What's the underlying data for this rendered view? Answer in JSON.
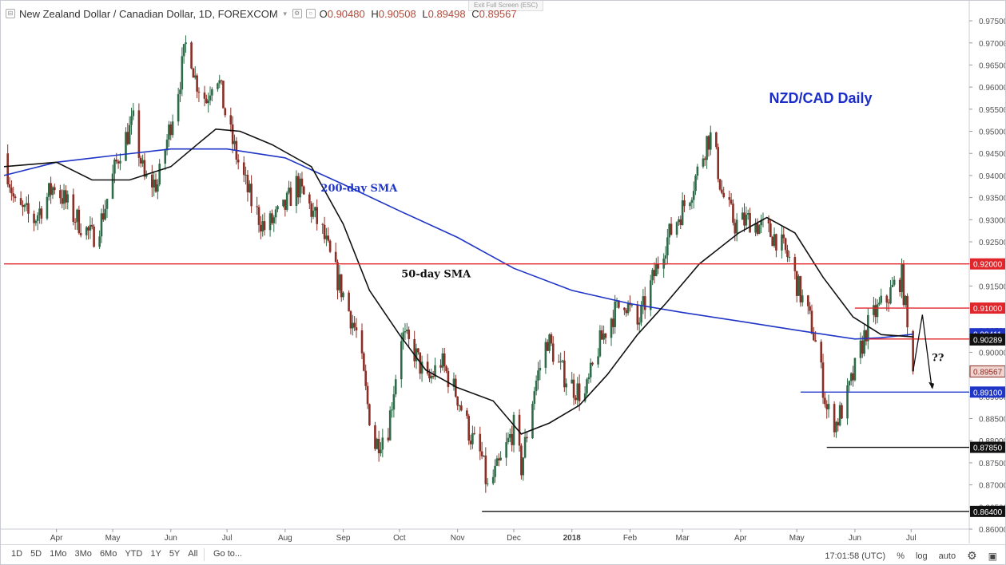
{
  "header": {
    "symbol": "New Zealand Dollar / Canadian Dollar, 1D, FOREXCOM",
    "open_label": "O",
    "open": "0.90480",
    "high_label": "H",
    "high": "0.90508",
    "low_label": "L",
    "low": "0.89498",
    "close_label": "C",
    "close": "0.89567",
    "exit_fullscreen": "Exit Full Screen (ESC)"
  },
  "toolbar": {
    "timeframes": [
      "1D",
      "5D",
      "1Mo",
      "3Mo",
      "6Mo",
      "YTD",
      "1Y",
      "5Y",
      "All"
    ],
    "goto": "Go to...",
    "clock": "17:01:58 (UTC)",
    "percent": "%",
    "log": "log",
    "auto": "auto"
  },
  "colors": {
    "up_candle": "#2e6b48",
    "down_candle": "#8b2e25",
    "sma50": "#111111",
    "sma200": "#1f35c7",
    "resistance": "#e0262a",
    "support_blue": "#1f35c7",
    "support_black": "#111111",
    "title": "#1b2dc9"
  },
  "chart_data": {
    "type": "candlestick",
    "title": "NZD/CAD Daily",
    "y_range": [
      0.86,
      0.977
    ],
    "y_ticks": [
      "0.97500",
      "0.97000",
      "0.96500",
      "0.96000",
      "0.95500",
      "0.95000",
      "0.94500",
      "0.94000",
      "0.93500",
      "0.93000",
      "0.92500",
      "0.92000",
      "0.91500",
      "0.91000",
      "0.90500",
      "0.90000",
      "0.89500",
      "0.89000",
      "0.88500",
      "0.88000",
      "0.87500",
      "0.87000",
      "0.86500",
      "0.86000"
    ],
    "x_labels": [
      "Apr",
      "May",
      "Jun",
      "Jul",
      "Aug",
      "Sep",
      "Oct",
      "Nov",
      "Dec",
      "2018",
      "Feb",
      "Mar",
      "Apr",
      "May",
      "Jun",
      "Jul"
    ],
    "x_label_dates": [
      "2017-04-01",
      "2017-05-01",
      "2017-06-01",
      "2017-07-01",
      "2017-08-01",
      "2017-09-01",
      "2017-10-01",
      "2017-11-01",
      "2017-12-01",
      "2018-01-01",
      "2018-02-01",
      "2018-03-01",
      "2018-04-01",
      "2018-05-01",
      "2018-06-01",
      "2018-07-01"
    ],
    "x_range": [
      "2017-03-04",
      "2018-08-01"
    ],
    "close_path": [
      [
        "2017-03-04",
        0.945
      ],
      [
        "2017-03-10",
        0.933
      ],
      [
        "2017-03-20",
        0.93
      ],
      [
        "2017-03-31",
        0.938
      ],
      [
        "2017-04-10",
        0.931
      ],
      [
        "2017-04-20",
        0.926
      ],
      [
        "2017-04-25",
        0.93
      ],
      [
        "2017-05-05",
        0.946
      ],
      [
        "2017-05-12",
        0.952
      ],
      [
        "2017-05-18",
        0.939
      ],
      [
        "2017-05-25",
        0.938
      ],
      [
        "2017-05-31",
        0.95
      ],
      [
        "2017-06-06",
        0.962
      ],
      [
        "2017-06-10",
        0.972
      ],
      [
        "2017-06-14",
        0.962
      ],
      [
        "2017-06-20",
        0.957
      ],
      [
        "2017-06-25",
        0.965
      ],
      [
        "2017-07-01",
        0.952
      ],
      [
        "2017-07-07",
        0.943
      ],
      [
        "2017-07-14",
        0.934
      ],
      [
        "2017-07-21",
        0.928
      ],
      [
        "2017-07-31",
        0.932
      ],
      [
        "2017-08-07",
        0.938
      ],
      [
        "2017-08-14",
        0.933
      ],
      [
        "2017-08-21",
        0.927
      ],
      [
        "2017-08-26",
        0.92
      ],
      [
        "2017-09-02",
        0.912
      ],
      [
        "2017-09-09",
        0.903
      ],
      [
        "2017-09-14",
        0.888
      ],
      [
        "2017-09-18",
        0.879
      ],
      [
        "2017-09-25",
        0.883
      ],
      [
        "2017-10-02",
        0.904
      ],
      [
        "2017-10-09",
        0.9
      ],
      [
        "2017-10-16",
        0.893
      ],
      [
        "2017-10-23",
        0.898
      ],
      [
        "2017-11-01",
        0.89
      ],
      [
        "2017-11-08",
        0.881
      ],
      [
        "2017-11-14",
        0.876
      ],
      [
        "2017-11-17",
        0.869
      ],
      [
        "2017-11-24",
        0.875
      ],
      [
        "2017-12-01",
        0.883
      ],
      [
        "2017-12-05",
        0.874
      ],
      [
        "2017-12-12",
        0.892
      ],
      [
        "2017-12-19",
        0.903
      ],
      [
        "2017-12-26",
        0.896
      ],
      [
        "2018-01-02",
        0.892
      ],
      [
        "2018-01-08",
        0.89
      ],
      [
        "2018-01-15",
        0.901
      ],
      [
        "2018-01-22",
        0.908
      ],
      [
        "2018-01-29",
        0.912
      ],
      [
        "2018-02-05",
        0.906
      ],
      [
        "2018-02-12",
        0.915
      ],
      [
        "2018-02-19",
        0.924
      ],
      [
        "2018-02-26",
        0.93
      ],
      [
        "2018-03-05",
        0.936
      ],
      [
        "2018-03-10",
        0.942
      ],
      [
        "2018-03-14",
        0.948
      ],
      [
        "2018-03-17",
        0.949
      ],
      [
        "2018-03-22",
        0.936
      ],
      [
        "2018-03-29",
        0.929
      ],
      [
        "2018-04-06",
        0.93
      ],
      [
        "2018-04-13",
        0.928
      ],
      [
        "2018-04-20",
        0.926
      ],
      [
        "2018-04-27",
        0.921
      ],
      [
        "2018-05-03",
        0.913
      ],
      [
        "2018-05-09",
        0.906
      ],
      [
        "2018-05-13",
        0.898
      ],
      [
        "2018-05-17",
        0.887
      ],
      [
        "2018-05-22",
        0.884
      ],
      [
        "2018-05-28",
        0.89
      ],
      [
        "2018-06-01",
        0.896
      ],
      [
        "2018-06-07",
        0.905
      ],
      [
        "2018-06-12",
        0.909
      ],
      [
        "2018-06-18",
        0.912
      ],
      [
        "2018-06-22",
        0.915
      ],
      [
        "2018-06-26",
        0.917
      ],
      [
        "2018-06-28",
        0.91
      ],
      [
        "2018-06-29",
        0.9048
      ],
      [
        "2018-07-02",
        0.8957
      ]
    ],
    "series": [
      {
        "name": "200-day SMA",
        "points": [
          [
            "2017-03-04",
            0.94
          ],
          [
            "2017-04-01",
            0.943
          ],
          [
            "2017-05-01",
            0.9445
          ],
          [
            "2017-06-01",
            0.946
          ],
          [
            "2017-07-01",
            0.946
          ],
          [
            "2017-08-01",
            0.944
          ],
          [
            "2017-09-01",
            0.938
          ],
          [
            "2017-10-01",
            0.932
          ],
          [
            "2017-11-01",
            0.926
          ],
          [
            "2017-12-01",
            0.919
          ],
          [
            "2018-01-01",
            0.914
          ],
          [
            "2018-02-01",
            0.911
          ],
          [
            "2018-03-01",
            0.909
          ],
          [
            "2018-04-01",
            0.907
          ],
          [
            "2018-05-01",
            0.905
          ],
          [
            "2018-06-01",
            0.903
          ],
          [
            "2018-06-15",
            0.9033
          ],
          [
            "2018-07-02",
            0.9041
          ]
        ]
      },
      {
        "name": "50-day SMA",
        "points": [
          [
            "2017-03-04",
            0.942
          ],
          [
            "2017-04-01",
            0.943
          ],
          [
            "2017-04-20",
            0.939
          ],
          [
            "2017-05-10",
            0.939
          ],
          [
            "2017-06-01",
            0.942
          ],
          [
            "2017-06-15",
            0.947
          ],
          [
            "2017-06-25",
            0.9505
          ],
          [
            "2017-07-08",
            0.95
          ],
          [
            "2017-07-25",
            0.947
          ],
          [
            "2017-08-15",
            0.942
          ],
          [
            "2017-09-01",
            0.929
          ],
          [
            "2017-09-15",
            0.914
          ],
          [
            "2017-10-01",
            0.904
          ],
          [
            "2017-10-15",
            0.896
          ],
          [
            "2017-11-01",
            0.892
          ],
          [
            "2017-11-20",
            0.889
          ],
          [
            "2017-12-05",
            0.8815
          ],
          [
            "2017-12-20",
            0.884
          ],
          [
            "2018-01-05",
            0.888
          ],
          [
            "2018-01-20",
            0.895
          ],
          [
            "2018-02-05",
            0.904
          ],
          [
            "2018-02-20",
            0.911
          ],
          [
            "2018-03-10",
            0.92
          ],
          [
            "2018-03-31",
            0.927
          ],
          [
            "2018-04-15",
            0.9305
          ],
          [
            "2018-04-30",
            0.927
          ],
          [
            "2018-05-15",
            0.917
          ],
          [
            "2018-05-31",
            0.908
          ],
          [
            "2018-06-15",
            0.904
          ],
          [
            "2018-07-02",
            0.9035
          ]
        ]
      }
    ],
    "levels": [
      {
        "value": 0.92,
        "label": "0.92000",
        "color": "red",
        "from": "2017-03-04"
      },
      {
        "value": 0.91,
        "label": "0.91000",
        "color": "red",
        "from": "2018-06-01"
      },
      {
        "value": 0.903,
        "label": "0.90300",
        "color": "red",
        "from": "2018-06-08"
      },
      {
        "value": 0.891,
        "label": "0.89100",
        "color": "blue",
        "from": "2018-05-03"
      },
      {
        "value": 0.8785,
        "label": "0.87850",
        "color": "black",
        "from": "2018-05-17"
      },
      {
        "value": 0.864,
        "label": "0.86400",
        "color": "black",
        "from": "2017-11-14"
      }
    ],
    "price_tags": [
      {
        "value": 0.90411,
        "label": "0.90411",
        "style": "blue"
      },
      {
        "value": 0.90289,
        "label": "0.90289",
        "style": "black"
      },
      {
        "value": 0.89567,
        "label": "0.89567",
        "style": "close"
      }
    ],
    "annotations": [
      {
        "text": "200-day SMA",
        "date": "2017-08-20",
        "value": 0.9364,
        "color": "blue"
      },
      {
        "text": "50-day SMA",
        "date": "2017-10-02",
        "value": 0.917,
        "color": "black"
      },
      {
        "text": "??",
        "date": "2018-07-12",
        "value": 0.898,
        "color": "black"
      }
    ]
  }
}
